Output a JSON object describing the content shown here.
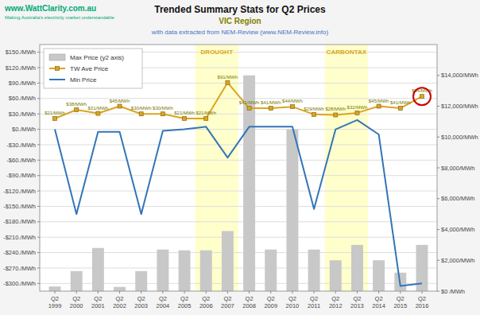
{
  "chart_data": {
    "type": "line",
    "title": "Trended Summary Stats for Q2 Prices",
    "subtitle": "VIC Region",
    "categories": [
      "Q2\n1999",
      "Q2\n2000",
      "Q2\n2001",
      "Q2\n2002",
      "Q2\n2003",
      "Q2\n2004",
      "Q2\n2005",
      "Q2\n2006",
      "Q2\n2007",
      "Q2\n2008",
      "Q2\n2009",
      "Q2\n2010",
      "Q2\n2011",
      "Q2\n2012",
      "Q2\n2013",
      "Q2\n2014",
      "Q2\n2015",
      "Q2\n2016"
    ],
    "series": [
      {
        "name": "Max Price (y2 axis)",
        "type": "bar",
        "axis": "y2",
        "color": "#C8C8C8",
        "values": [
          300,
          1300,
          2800,
          275,
          1300,
          2700,
          2650,
          2650,
          3900,
          14000,
          2700,
          10500,
          2700,
          2000,
          3000,
          2000,
          1200,
          3000
        ]
      },
      {
        "name": "TW Ave Price",
        "type": "line",
        "color": "#DAA520",
        "marker": "square",
        "data_labels": true,
        "values": [
          21,
          38,
          31,
          45,
          30,
          30,
          21,
          21,
          91,
          41,
          41,
          44,
          29,
          28,
          32,
          45,
          41,
          64
        ],
        "value_labels": [
          "$21/MWh",
          "$38/MWh",
          "$31/MWh",
          "$45/MWh",
          "$30/MWh",
          "$30/MWh",
          "$21/MWh",
          "$21/MWh",
          "$91/MWh",
          "$41/MWh",
          "$41/MWh",
          "$44/MWh",
          "$29/MWh",
          "$28/MWh",
          "$32/MWh",
          "$45/MWh",
          "$41/MWh",
          "$64/MWh"
        ]
      },
      {
        "name": "Min Price",
        "type": "line",
        "color": "#3375B7",
        "values": [
          0,
          -165,
          -5,
          -5,
          -165,
          -3,
          0,
          5,
          -55,
          5,
          5,
          5,
          -155,
          0,
          18,
          -10,
          -305,
          -300
        ]
      }
    ],
    "ylim": [
      -315,
      165
    ],
    "yticks": [
      {
        "value": 150,
        "label": "$150./MWh"
      },
      {
        "value": 120,
        "label": "$120./MWh"
      },
      {
        "value": 90,
        "label": "$90./MWh"
      },
      {
        "value": 60,
        "label": "$60./MWh"
      },
      {
        "value": 30,
        "label": "$30./MWh"
      },
      {
        "value": 0,
        "label": "$0./MWh"
      },
      {
        "value": -30,
        "label": "-$30./MWh"
      },
      {
        "value": -60,
        "label": "-$60./MWh"
      },
      {
        "value": -90,
        "label": "-$90./MWh"
      },
      {
        "value": -120,
        "label": "-$120./MWh"
      },
      {
        "value": -150,
        "label": "-$150./MWh"
      },
      {
        "value": -180,
        "label": "-$180./MWh"
      },
      {
        "value": -210,
        "label": "-$210./MWh"
      },
      {
        "value": -240,
        "label": "-$240./MWh"
      },
      {
        "value": -270,
        "label": "-$270./MWh"
      },
      {
        "value": -300,
        "label": "-$300./MWh"
      }
    ],
    "y2lim": [
      0,
      16000
    ],
    "y2ticks": [
      {
        "value": 0,
        "label": "$0 /MWh"
      },
      {
        "value": 2000,
        "label": "$2,000/MWh"
      },
      {
        "value": 4000,
        "label": "$4,000/MWh"
      },
      {
        "value": 6000,
        "label": "$6,000/MWh"
      },
      {
        "value": 8000,
        "label": "$8,000/MWh"
      },
      {
        "value": 10000,
        "label": "$10,000/MWh"
      },
      {
        "value": 12000,
        "label": "$12,000/MWh"
      },
      {
        "value": 14000,
        "label": "$14,000/MWh"
      }
    ],
    "grid": true,
    "legend": "upper left",
    "annotations": [
      {
        "text": "with data extracted from NEM-Review (www.NEM-Review.info)",
        "color": "#4472C4"
      },
      {
        "text": "www.WattClarity.com.au",
        "color": "#00AA77"
      },
      {
        "text": "Making Australia's electricity market understandable",
        "color": "#00AA77"
      },
      {
        "text": "DROUGHT",
        "color": "#DAA520",
        "span": [
          "Q2\n2006",
          "Q2\n2007"
        ],
        "shade_color": "#FFFFCC"
      },
      {
        "text": "CARBONTAX",
        "color": "#DAA520",
        "span": [
          "Q2\n2012",
          "Q2\n2013"
        ],
        "shade_color": "#FFFFCC"
      },
      {
        "shape": "circle",
        "category": "Q2\n2016",
        "series": "TW Ave Price",
        "color": "#CC0000"
      }
    ]
  }
}
